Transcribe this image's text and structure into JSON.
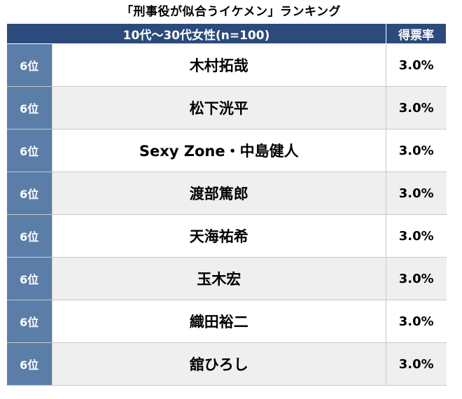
{
  "title": "「刑事役が似合うイケメン」ランキング",
  "header": {
    "group_label": "10代〜30代女性(n=100)",
    "rate_label": "得票率"
  },
  "rows": [
    {
      "rank": "6位",
      "name": "木村拓哉",
      "rate": "3.0%"
    },
    {
      "rank": "6位",
      "name": "松下洸平",
      "rate": "3.0%"
    },
    {
      "rank": "6位",
      "name": "Sexy Zone・中島健人",
      "rate": "3.0%"
    },
    {
      "rank": "6位",
      "name": "渡部篤郎",
      "rate": "3.0%"
    },
    {
      "rank": "6位",
      "name": "天海祐希",
      "rate": "3.0%"
    },
    {
      "rank": "6位",
      "name": "玉木宏",
      "rate": "3.0%"
    },
    {
      "rank": "6位",
      "name": "織田裕二",
      "rate": "3.0%"
    },
    {
      "rank": "6位",
      "name": "舘ひろし",
      "rate": "3.0%"
    }
  ],
  "colors": {
    "header_bg": "#2c4a7c",
    "rank_bg": "#5b7ea8",
    "row_alt_bg": "#efefef"
  }
}
